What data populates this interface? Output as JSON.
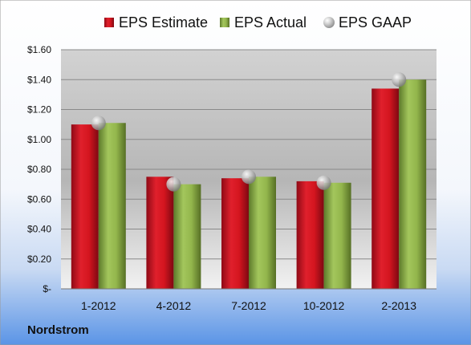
{
  "chart_data": {
    "type": "bar",
    "categories": [
      "1-2012",
      "4-2012",
      "7-2012",
      "10-2012",
      "2-2013"
    ],
    "series": [
      {
        "name": "EPS Estimate",
        "values": [
          1.1,
          0.75,
          0.74,
          0.72,
          1.34
        ],
        "color": "#c8102e"
      },
      {
        "name": "EPS Actual",
        "values": [
          1.11,
          0.7,
          0.75,
          0.71,
          1.4
        ],
        "color": "#8cb048"
      }
    ],
    "markers": {
      "name": "EPS GAAP",
      "values": [
        1.11,
        0.7,
        0.75,
        0.71,
        1.4
      ],
      "color": "#b9b9b9"
    },
    "ylim": [
      0,
      1.6
    ],
    "yticks": [
      {
        "value": 0,
        "label": "$-"
      },
      {
        "value": 0.2,
        "label": "$0.20"
      },
      {
        "value": 0.4,
        "label": "$0.40"
      },
      {
        "value": 0.6,
        "label": "$0.60"
      },
      {
        "value": 0.8,
        "label": "$0.80"
      },
      {
        "value": 1.0,
        "label": "$1.00"
      },
      {
        "value": 1.2,
        "label": "$1.20"
      },
      {
        "value": 1.4,
        "label": "$1.40"
      },
      {
        "value": 1.6,
        "label": "$1.60"
      }
    ],
    "grid": true,
    "legend_position": "top",
    "company": "Nordstrom"
  }
}
